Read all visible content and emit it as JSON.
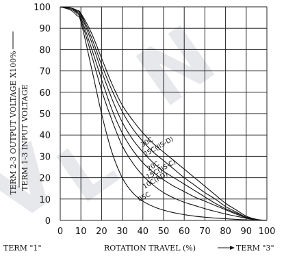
{
  "chart_data": {
    "type": "line",
    "xlim": [
      0,
      100
    ],
    "ylim": [
      0,
      100
    ],
    "x_ticks": [
      "0",
      "10",
      "20",
      "30",
      "40",
      "50",
      "60",
      "70",
      "80",
      "90",
      "100"
    ],
    "y_ticks": [
      "0",
      "10",
      "20",
      "30",
      "40",
      "50",
      "60",
      "70",
      "80",
      "90",
      "100"
    ],
    "grid": true,
    "xlabel": {
      "left": "TERM \"1\"",
      "center": "ROTATION TRAVEL (%)",
      "right": "TERM \"3\""
    },
    "ylabel": {
      "numerator": "TERM 2-3 OUTPUT VOLTAGE",
      "denominator": "TERM 1-3 INPUT VOLTAGE",
      "suffix": "X100%"
    },
    "series": [
      {
        "name": "30C",
        "x": [
          0,
          5,
          8,
          10,
          15,
          20,
          25,
          30,
          35,
          40,
          45,
          50,
          55,
          60,
          65,
          70,
          75,
          80,
          85,
          90,
          95,
          100
        ],
        "y": [
          100,
          99.5,
          98.5,
          97,
          88,
          76,
          64,
          54,
          47,
          41,
          36,
          32,
          28,
          24,
          20,
          16,
          12,
          8,
          5,
          2,
          0.5,
          0
        ]
      },
      {
        "name": "25C(JIS-D)",
        "x": [
          0,
          5,
          8,
          10,
          15,
          20,
          25,
          30,
          35,
          40,
          45,
          50,
          55,
          60,
          65,
          70,
          75,
          80,
          85,
          90,
          95,
          100
        ],
        "y": [
          100,
          99.5,
          98,
          96.5,
          86,
          73,
          61,
          51,
          43,
          37,
          32,
          28,
          24,
          20,
          16.5,
          13,
          10,
          6.5,
          4,
          1.5,
          0.3,
          0
        ]
      },
      {
        "name": "20C",
        "x": [
          0,
          5,
          8,
          10,
          15,
          20,
          25,
          30,
          35,
          40,
          45,
          50,
          55,
          60,
          65,
          70,
          75,
          80,
          85,
          90,
          95,
          100
        ],
        "y": [
          100,
          99.5,
          98,
          96,
          84,
          70,
          57,
          46,
          38,
          32,
          27,
          23,
          20,
          17,
          14,
          11,
          8,
          5.5,
          3.5,
          1.5,
          0.3,
          0
        ]
      },
      {
        "name": "15C(JIS-C)",
        "x": [
          0,
          5,
          8,
          10,
          15,
          20,
          25,
          30,
          35,
          40,
          45,
          50,
          55,
          60,
          65,
          70,
          75,
          80,
          85,
          90,
          95,
          100
        ],
        "y": [
          100,
          99.5,
          97.5,
          95,
          81,
          66,
          52,
          41,
          33,
          27,
          22.5,
          19,
          16,
          13.5,
          11,
          9,
          7,
          5,
          3,
          1.2,
          0.2,
          0
        ]
      },
      {
        "name": "10C(RD)",
        "x": [
          0,
          5,
          8,
          10,
          15,
          20,
          25,
          30,
          35,
          40,
          45,
          50,
          55,
          60,
          65,
          70,
          75,
          80,
          85,
          90,
          95,
          100
        ],
        "y": [
          100,
          99,
          97,
          94,
          78,
          61,
          47,
          35,
          27,
          21,
          16.5,
          13,
          10.5,
          8.5,
          7,
          5.5,
          4.2,
          3,
          2,
          1,
          0.2,
          0
        ]
      },
      {
        "name": "05C",
        "x": [
          0,
          5,
          8,
          10,
          15,
          20,
          25,
          30,
          35,
          40,
          45,
          50,
          55,
          60,
          65,
          70,
          75,
          80,
          85,
          90,
          95,
          100
        ],
        "y": [
          100,
          98.5,
          96,
          93,
          72,
          50,
          32,
          20,
          13,
          9,
          6.5,
          4.8,
          3.6,
          2.7,
          2,
          1.5,
          1.1,
          0.8,
          0.5,
          0.3,
          0.1,
          0
        ]
      }
    ]
  },
  "style": {
    "line_color": "#111111",
    "grid_color": "#222222",
    "watermark_color": "#c9ccd3"
  }
}
